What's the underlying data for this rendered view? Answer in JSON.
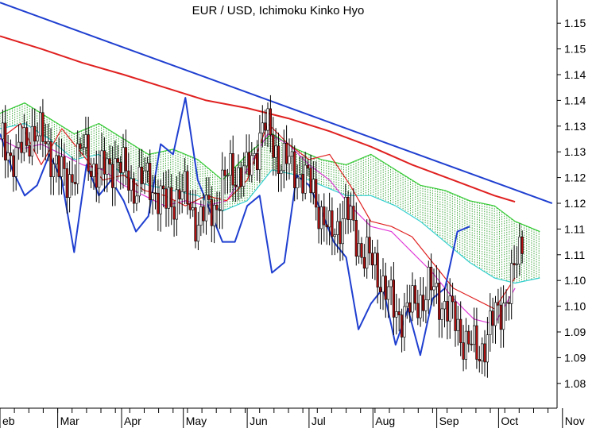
{
  "chart_data": {
    "type": "line",
    "title": "EUR / USD, Ichimoku Kinko Hyo",
    "xlabel": "",
    "ylabel": "",
    "ylim": [
      1.078,
      1.157
    ],
    "y_ticks": [
      "1.15",
      "1.15",
      "1.14",
      "1.14",
      "1.13",
      "1.13",
      "1.12",
      "1.12",
      "1.11",
      "1.11",
      "1.10",
      "1.10",
      "1.09",
      "1.09",
      "1.08"
    ],
    "y_tick_values": [
      1.1525,
      1.1475,
      1.1425,
      1.1375,
      1.1325,
      1.1275,
      1.1225,
      1.1175,
      1.1125,
      1.1075,
      1.1025,
      1.0975,
      1.0925,
      1.0875,
      1.0825
    ],
    "x_range": [
      0,
      270
    ],
    "x_ticks": [
      "eb",
      "Mar",
      "Apr",
      "May",
      "Jun",
      "Jul",
      "Aug",
      "Sep",
      "Oct",
      "Nov"
    ],
    "x_tick_days": [
      0,
      28,
      59,
      89,
      120,
      150,
      181,
      212,
      242,
      273
    ],
    "grid": false,
    "series": [
      {
        "key": "trend",
        "color": "#1f3fd0",
        "x": [
          0,
          268
        ],
        "y": [
          1.1565,
          1.1175
        ]
      },
      {
        "key": "long_ma",
        "color": "#e02020",
        "x": [
          0,
          20,
          40,
          60,
          80,
          100,
          120,
          140,
          160,
          180,
          200,
          220,
          240,
          250
        ],
        "y": [
          1.15,
          1.1475,
          1.1448,
          1.1425,
          1.14,
          1.1375,
          1.136,
          1.134,
          1.1315,
          1.1285,
          1.125,
          1.122,
          1.119,
          1.1178
        ]
      },
      {
        "key": "chikou",
        "color": "#1f3fd0",
        "x": [
          0,
          6,
          12,
          18,
          24,
          30,
          36,
          42,
          48,
          54,
          60,
          66,
          72,
          78,
          84,
          90,
          96,
          102,
          108,
          114,
          120,
          126,
          132,
          138,
          144,
          150,
          156,
          162,
          168,
          174,
          180,
          186,
          192,
          198,
          204,
          210,
          216,
          222,
          228
        ],
        "y": [
          1.131,
          1.124,
          1.119,
          1.121,
          1.127,
          1.122,
          1.108,
          1.125,
          1.119,
          1.122,
          1.118,
          1.112,
          1.115,
          1.129,
          1.127,
          1.138,
          1.122,
          1.116,
          1.11,
          1.11,
          1.117,
          1.119,
          1.104,
          1.106,
          1.123,
          1.121,
          1.116,
          1.11,
          1.107,
          1.093,
          1.098,
          1.101,
          1.09,
          1.097,
          1.088,
          1.099,
          1.101,
          1.112,
          1.113
        ]
      },
      {
        "key": "tenkan",
        "color": "#e02020",
        "x": [
          0,
          10,
          20,
          30,
          40,
          50,
          60,
          70,
          80,
          90,
          100,
          110,
          120,
          130,
          140,
          150,
          160,
          170,
          180,
          190,
          200,
          210,
          220,
          230,
          240,
          250
        ],
        "y": [
          1.13,
          1.133,
          1.125,
          1.132,
          1.127,
          1.122,
          1.123,
          1.12,
          1.119,
          1.117,
          1.119,
          1.118,
          1.122,
          1.133,
          1.129,
          1.126,
          1.127,
          1.121,
          1.114,
          1.113,
          1.111,
          1.106,
          1.101,
          1.099,
          1.097,
          1.103
        ]
      },
      {
        "key": "kijun",
        "color": "#e03ad8",
        "x": [
          0,
          10,
          20,
          30,
          40,
          50,
          60,
          70,
          80,
          90,
          100,
          110,
          120,
          130,
          140,
          150,
          160,
          170,
          180,
          190,
          200,
          210,
          220,
          230,
          240,
          250
        ],
        "y": [
          1.13,
          1.128,
          1.129,
          1.127,
          1.125,
          1.124,
          1.121,
          1.119,
          1.117,
          1.118,
          1.117,
          1.118,
          1.124,
          1.131,
          1.129,
          1.125,
          1.122,
          1.117,
          1.113,
          1.112,
          1.108,
          1.104,
          1.099,
          1.095,
          1.094,
          1.101
        ]
      },
      {
        "key": "senkou_a",
        "color": "#33cc33",
        "x": [
          0,
          12,
          24,
          36,
          48,
          60,
          72,
          84,
          96,
          108,
          120,
          132,
          144,
          156,
          168,
          180,
          192,
          204,
          216,
          228,
          240,
          250,
          262
        ],
        "y": [
          1.135,
          1.137,
          1.134,
          1.131,
          1.133,
          1.13,
          1.127,
          1.128,
          1.126,
          1.122,
          1.127,
          1.131,
          1.128,
          1.126,
          1.125,
          1.127,
          1.124,
          1.121,
          1.12,
          1.118,
          1.117,
          1.114,
          1.112
        ]
      },
      {
        "key": "senkou_b",
        "color": "#33d0d0",
        "x": [
          0,
          12,
          24,
          36,
          48,
          60,
          72,
          84,
          96,
          108,
          120,
          132,
          144,
          156,
          168,
          180,
          192,
          204,
          216,
          228,
          240,
          250,
          262
        ],
        "y": [
          1.132,
          1.133,
          1.13,
          1.126,
          1.127,
          1.123,
          1.121,
          1.12,
          1.119,
          1.116,
          1.118,
          1.124,
          1.123,
          1.121,
          1.119,
          1.119,
          1.117,
          1.114,
          1.11,
          1.106,
          1.103,
          1.102,
          1.103
        ]
      },
      {
        "key": "price",
        "color": "#000000",
        "x": [
          0,
          8,
          16,
          24,
          32,
          40,
          48,
          56,
          64,
          72,
          80,
          88,
          96,
          104,
          112,
          120,
          128,
          136,
          144,
          152,
          160,
          168,
          176,
          184,
          192,
          200,
          208,
          216,
          224,
          232,
          240,
          248,
          254
        ],
        "y": [
          1.13,
          1.126,
          1.132,
          1.128,
          1.121,
          1.128,
          1.123,
          1.126,
          1.121,
          1.122,
          1.117,
          1.12,
          1.114,
          1.117,
          1.124,
          1.123,
          1.133,
          1.126,
          1.124,
          1.12,
          1.111,
          1.116,
          1.108,
          1.104,
          1.096,
          1.097,
          1.101,
          1.098,
          1.092,
          1.088,
          1.095,
          1.101,
          1.112
        ]
      }
    ]
  }
}
